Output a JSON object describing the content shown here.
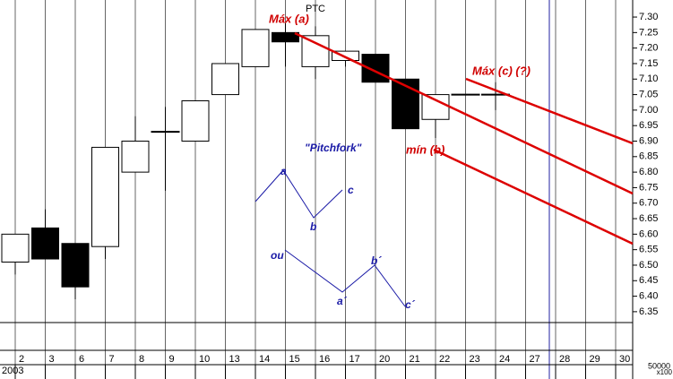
{
  "chart_data": {
    "type": "candlestick",
    "title": "PTC",
    "categories": [
      "2",
      "3",
      "6",
      "7",
      "8",
      "9",
      "10",
      "13",
      "14",
      "15",
      "16",
      "17",
      "20",
      "21",
      "22",
      "23",
      "24",
      "27",
      "28",
      "29",
      "30"
    ],
    "open": [
      6.51,
      6.62,
      6.57,
      6.56,
      6.8,
      6.93,
      6.9,
      7.05,
      7.14,
      7.25,
      7.14,
      7.16,
      7.18,
      7.1,
      6.97,
      7.05,
      7.05,
      null,
      null,
      null,
      null
    ],
    "high": [
      6.6,
      6.68,
      6.57,
      6.88,
      6.98,
      7.01,
      7.03,
      7.15,
      7.26,
      7.28,
      7.27,
      7.19,
      7.18,
      7.1,
      7.05,
      7.05,
      7.09,
      null,
      null,
      null,
      null
    ],
    "low": [
      6.47,
      6.52,
      6.39,
      6.52,
      6.8,
      6.74,
      6.9,
      7.05,
      7.14,
      7.14,
      7.1,
      7.14,
      7.09,
      6.94,
      6.91,
      7.05,
      7.0,
      null,
      null,
      null,
      null
    ],
    "close": [
      6.6,
      6.52,
      6.43,
      6.88,
      6.9,
      6.93,
      7.03,
      7.15,
      7.26,
      7.22,
      7.24,
      7.19,
      7.09,
      6.94,
      7.05,
      7.05,
      7.05,
      null,
      null,
      null,
      null
    ],
    "ylim": [
      6.315,
      7.355
    ],
    "yticks": [
      {
        "value": 7.3,
        "label": "7.30"
      },
      {
        "value": 7.25,
        "label": "7.25"
      },
      {
        "value": 7.2,
        "label": "7.20"
      },
      {
        "value": 7.15,
        "label": "7.15"
      },
      {
        "value": 7.1,
        "label": "7.10"
      },
      {
        "value": 7.05,
        "label": "7.05"
      },
      {
        "value": 7.0,
        "label": "7.00"
      },
      {
        "value": 6.95,
        "label": "6.95"
      },
      {
        "value": 6.9,
        "label": "6.90"
      },
      {
        "value": 6.85,
        "label": "6.85"
      },
      {
        "value": 6.8,
        "label": "6.80"
      },
      {
        "value": 6.75,
        "label": "6.75"
      },
      {
        "value": 6.7,
        "label": "6.70"
      },
      {
        "value": 6.65,
        "label": "6.65"
      },
      {
        "value": 6.6,
        "label": "6.60"
      },
      {
        "value": 6.55,
        "label": "6.55"
      },
      {
        "value": 6.5,
        "label": "6.50"
      },
      {
        "value": 6.45,
        "label": "6.45"
      },
      {
        "value": 6.4,
        "label": "6.40"
      },
      {
        "value": 6.35,
        "label": "6.35"
      }
    ],
    "year": "2003",
    "volume_tick": "50000",
    "volume_unit": "x100",
    "annotations": {
      "max_a": "Máx (a)",
      "max_c": "Máx (c) (?)",
      "min_b": "mín (b)",
      "pitchfork": "\"Pitchfork\"",
      "a": "a",
      "b": "b",
      "c": "c",
      "ou": "ou",
      "a2": "a´",
      "b2": "b´",
      "c2": "c´"
    },
    "bullish_color": "#ffffff",
    "bearish_color": "#000000",
    "grid": true
  }
}
